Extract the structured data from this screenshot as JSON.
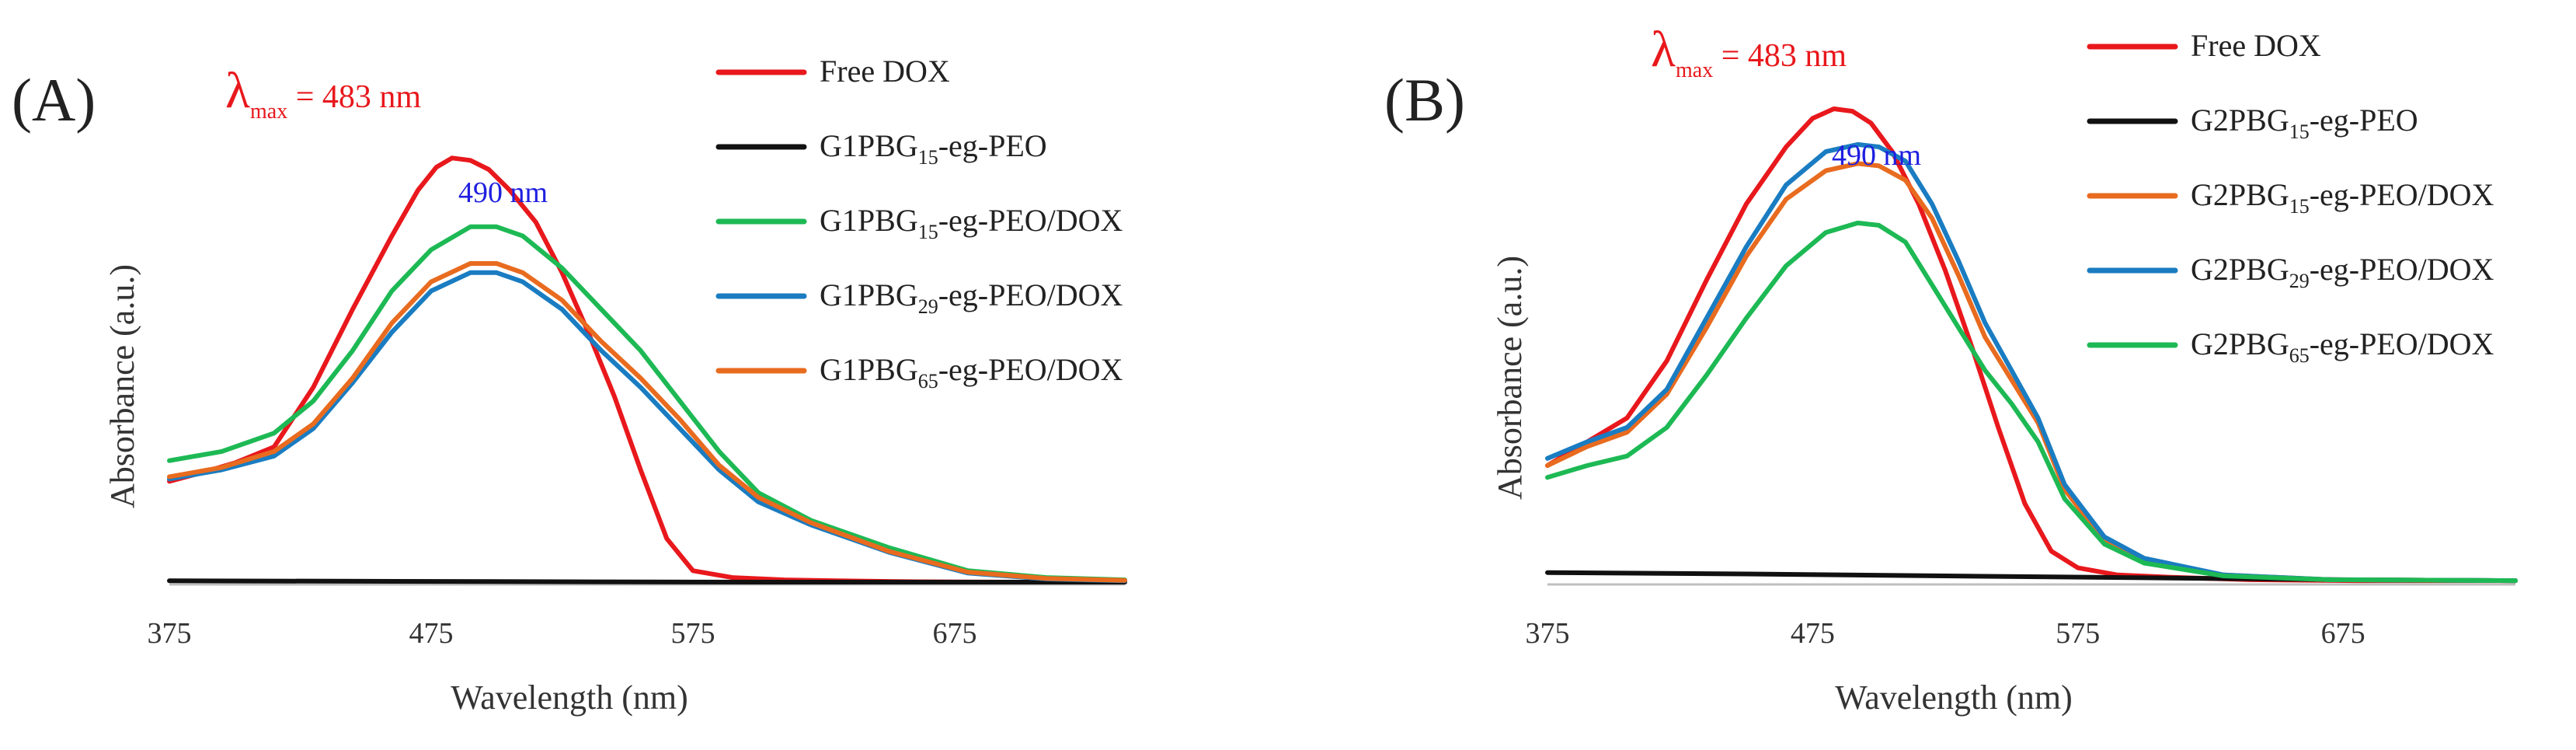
{
  "chart_data": [
    {
      "type": "line",
      "panel_label": "(A)",
      "xlabel": "Wavelength (nm)",
      "ylabel": "Absorbance (a.u.)",
      "xlim": [
        375,
        740
      ],
      "ylim": [
        0,
        1.0
      ],
      "x_ticks": [
        "375",
        "475",
        "575",
        "675"
      ],
      "annotation_lambda": {
        "symbol": "λ",
        "sub": "max",
        "text": " = 483 nm",
        "color": "#e8181c"
      },
      "annotation_peak": {
        "text": "490 nm",
        "color": "#1f1fe0"
      },
      "series": [
        {
          "name": "Free DOX",
          "name_base": "Free DOX",
          "name_sub": "",
          "name_rest": "",
          "color": "#e8181c",
          "x": [
            375,
            385,
            400,
            415,
            430,
            445,
            460,
            470,
            477,
            483,
            490,
            497,
            505,
            515,
            525,
            535,
            545,
            555,
            565,
            575,
            590,
            610,
            630,
            660,
            700,
            740
          ],
          "y": [
            0.225,
            0.24,
            0.265,
            0.3,
            0.43,
            0.6,
            0.76,
            0.86,
            0.91,
            0.93,
            0.925,
            0.905,
            0.86,
            0.79,
            0.68,
            0.55,
            0.41,
            0.25,
            0.1,
            0.03,
            0.015,
            0.01,
            0.008,
            0.006,
            0.005,
            0.005
          ]
        },
        {
          "name": "G1PBG15-eg-PEO",
          "name_base": "G1PBG",
          "name_sub": "15",
          "name_rest": "-eg-PEO",
          "color": "#111111",
          "x": [
            375,
            450,
            525,
            600,
            675,
            740
          ],
          "y": [
            0.008,
            0.007,
            0.006,
            0.005,
            0.005,
            0.005
          ]
        },
        {
          "name": "G1PBG15-eg-PEO/DOX",
          "name_base": "G1PBG",
          "name_sub": "15",
          "name_rest": "-eg-PEO/DOX",
          "color": "#1db954",
          "x": [
            375,
            395,
            415,
            430,
            445,
            460,
            475,
            490,
            500,
            510,
            525,
            540,
            555,
            570,
            585,
            600,
            620,
            650,
            680,
            710,
            740
          ],
          "y": [
            0.27,
            0.29,
            0.33,
            0.4,
            0.51,
            0.64,
            0.73,
            0.78,
            0.78,
            0.76,
            0.69,
            0.6,
            0.51,
            0.4,
            0.29,
            0.2,
            0.14,
            0.08,
            0.03,
            0.015,
            0.01
          ]
        },
        {
          "name": "G1PBG29-eg-PEO/DOX",
          "name_base": "G1PBG",
          "name_sub": "29",
          "name_rest": "-eg-PEO/DOX",
          "color": "#1a7cc1",
          "x": [
            375,
            395,
            415,
            430,
            445,
            460,
            475,
            490,
            500,
            510,
            525,
            540,
            555,
            570,
            585,
            600,
            620,
            650,
            680,
            710,
            740
          ],
          "y": [
            0.23,
            0.25,
            0.28,
            0.34,
            0.44,
            0.55,
            0.64,
            0.68,
            0.68,
            0.66,
            0.6,
            0.51,
            0.43,
            0.34,
            0.25,
            0.18,
            0.13,
            0.07,
            0.025,
            0.012,
            0.008
          ]
        },
        {
          "name": "G1PBG65-eg-PEO/DOX",
          "name_base": "G1PBG",
          "name_sub": "65",
          "name_rest": "-eg-PEO/DOX",
          "color": "#e86b1f",
          "x": [
            375,
            395,
            415,
            430,
            445,
            460,
            475,
            490,
            500,
            510,
            525,
            540,
            555,
            570,
            585,
            600,
            620,
            650,
            680,
            710,
            740
          ],
          "y": [
            0.235,
            0.255,
            0.29,
            0.35,
            0.45,
            0.57,
            0.66,
            0.7,
            0.7,
            0.68,
            0.62,
            0.53,
            0.45,
            0.36,
            0.26,
            0.19,
            0.135,
            0.072,
            0.027,
            0.013,
            0.009
          ]
        }
      ]
    },
    {
      "type": "line",
      "panel_label": "(B)",
      "xlabel": "Wavelength (nm)",
      "ylabel": "Absorbance (a.u.)",
      "xlim": [
        375,
        740
      ],
      "ylim": [
        0,
        1.0
      ],
      "x_ticks": [
        "375",
        "475",
        "575",
        "675"
      ],
      "annotation_lambda": {
        "symbol": "λ",
        "sub": "max",
        "text": " = 483 nm",
        "color": "#e8181c"
      },
      "annotation_peak": {
        "text": "490 nm",
        "color": "#1f1fe0"
      },
      "series": [
        {
          "name": "Free DOX",
          "name_base": "Free DOX",
          "name_sub": "",
          "name_rest": "",
          "color": "#e8181c",
          "x": [
            375,
            390,
            405,
            420,
            435,
            450,
            465,
            475,
            483,
            490,
            497,
            505,
            515,
            525,
            535,
            545,
            555,
            565,
            575,
            590,
            610,
            640,
            680,
            740
          ],
          "y": [
            0.25,
            0.3,
            0.35,
            0.47,
            0.64,
            0.8,
            0.92,
            0.98,
            1.0,
            0.995,
            0.97,
            0.91,
            0.8,
            0.66,
            0.5,
            0.33,
            0.17,
            0.07,
            0.035,
            0.02,
            0.015,
            0.01,
            0.008,
            0.008
          ]
        },
        {
          "name": "G2PBG15-eg-PEO",
          "name_base": "G2PBG",
          "name_sub": "15",
          "name_rest": "-eg-PEO",
          "color": "#111111",
          "x": [
            375,
            450,
            525,
            600,
            675,
            740
          ],
          "y": [
            0.025,
            0.022,
            0.018,
            0.014,
            0.01,
            0.008
          ]
        },
        {
          "name": "G2PBG15-eg-PEO/DOX",
          "name_base": "G2PBG",
          "name_sub": "15",
          "name_rest": "-eg-PEO/DOX",
          "color": "#e86b1f",
          "x": [
            375,
            390,
            405,
            420,
            435,
            450,
            465,
            480,
            492,
            500,
            510,
            520,
            530,
            540,
            550,
            560,
            570,
            585,
            600,
            630,
            670,
            740
          ],
          "y": [
            0.25,
            0.29,
            0.32,
            0.4,
            0.54,
            0.69,
            0.81,
            0.87,
            0.885,
            0.88,
            0.85,
            0.77,
            0.65,
            0.52,
            0.43,
            0.34,
            0.2,
            0.09,
            0.05,
            0.02,
            0.01,
            0.008
          ]
        },
        {
          "name": "G2PBG29-eg-PEO/DOX",
          "name_base": "G2PBG",
          "name_sub": "29",
          "name_rest": "-eg-PEO/DOX",
          "color": "#1a7cc1",
          "x": [
            375,
            390,
            405,
            420,
            435,
            450,
            465,
            480,
            492,
            500,
            510,
            520,
            530,
            540,
            550,
            560,
            570,
            585,
            600,
            630,
            670,
            740
          ],
          "y": [
            0.265,
            0.3,
            0.33,
            0.41,
            0.56,
            0.71,
            0.84,
            0.91,
            0.925,
            0.92,
            0.89,
            0.8,
            0.68,
            0.55,
            0.45,
            0.35,
            0.21,
            0.1,
            0.055,
            0.02,
            0.01,
            0.008
          ]
        },
        {
          "name": "G2PBG65-eg-PEO/DOX",
          "name_base": "G2PBG",
          "name_sub": "65",
          "name_rest": "-eg-PEO/DOX",
          "color": "#1db954",
          "x": [
            375,
            390,
            405,
            420,
            435,
            450,
            465,
            480,
            492,
            500,
            510,
            520,
            530,
            540,
            550,
            560,
            570,
            585,
            600,
            630,
            670,
            740
          ],
          "y": [
            0.225,
            0.25,
            0.27,
            0.33,
            0.44,
            0.56,
            0.67,
            0.74,
            0.76,
            0.755,
            0.72,
            0.63,
            0.54,
            0.45,
            0.38,
            0.3,
            0.18,
            0.085,
            0.045,
            0.018,
            0.01,
            0.008
          ]
        }
      ]
    }
  ]
}
